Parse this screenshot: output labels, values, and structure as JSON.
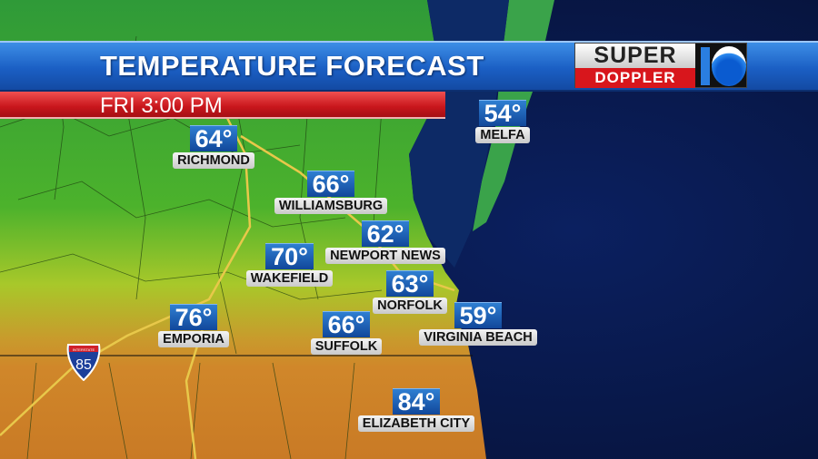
{
  "header": {
    "title": "TEMPERATURE FORECAST",
    "time": "FRI 3:00 PM"
  },
  "logo": {
    "line1": "SUPER",
    "line2": "DOPPLER",
    "channel": "10"
  },
  "highway": {
    "label": "INTERSTATE",
    "number": "85"
  },
  "colors": {
    "cool": "#3ca62c",
    "mild": "#a6c628",
    "warm": "#d0872a",
    "water": "#0b1a4a",
    "temp_box": "#1a5aa8"
  },
  "cities": [
    {
      "name": "RICHMOND",
      "temp": "64°"
    },
    {
      "name": "WILLIAMSBURG",
      "temp": "66°"
    },
    {
      "name": "NEWPORT NEWS",
      "temp": "62°"
    },
    {
      "name": "WAKEFIELD",
      "temp": "70°"
    },
    {
      "name": "NORFOLK",
      "temp": "63°"
    },
    {
      "name": "EMPORIA",
      "temp": "76°"
    },
    {
      "name": "SUFFOLK",
      "temp": "66°"
    },
    {
      "name": "VIRGINIA BEACH",
      "temp": "59°"
    },
    {
      "name": "ELIZABETH CITY",
      "temp": "84°"
    },
    {
      "name": "MELFA",
      "temp": "54°"
    }
  ]
}
